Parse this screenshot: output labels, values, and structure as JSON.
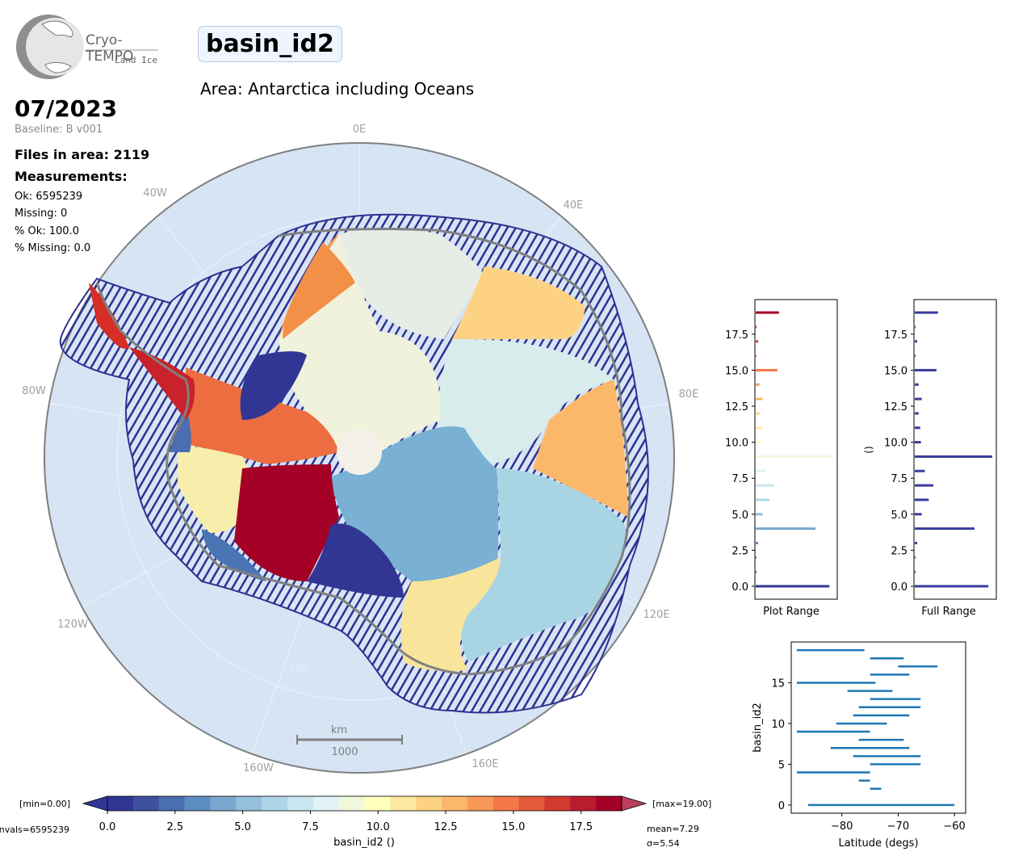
{
  "logo": {
    "name": "Cryo-TEMPO",
    "sub": "Land Ice"
  },
  "title": "basin_id2",
  "area": "Area: Antarctica including Oceans",
  "date": "07/2023",
  "baseline": "Baseline: B v001",
  "files": "Files in area: 2119",
  "measurements_label": "Measurements:",
  "stats": [
    "Ok: 6595239",
    "Missing: 0",
    "% Ok: 100.0",
    "% Missing: 0.0"
  ],
  "map": {
    "lon_labels": [
      "0E",
      "40E",
      "80E",
      "120E",
      "160E",
      "160W",
      "120W",
      "80W",
      "40W"
    ],
    "lat_label": "70S",
    "scale_unit": "km",
    "scale_value": "1000",
    "colors": {
      "ocean": "#d6e4f4",
      "track": "#2e3191",
      "coast": "#7f7f7f"
    }
  },
  "colorbar": {
    "min_label": "[min=0.00]",
    "max_label": "[max=19.00]",
    "nvals": "nvals=6595239",
    "mean": "mean=7.29",
    "sigma": "σ=5.54",
    "label": "basin_id2 ()",
    "ticks": [
      "0.0",
      "2.5",
      "5.0",
      "7.5",
      "10.0",
      "12.5",
      "15.0",
      "17.5"
    ],
    "colors": [
      "#313695",
      "#3d519f",
      "#4a6eb0",
      "#5e8ec1",
      "#79a8cf",
      "#94c0dc",
      "#aed6e8",
      "#c8e6f0",
      "#e0f2f3",
      "#f0f8db",
      "#fefebd",
      "#fee9a0",
      "#fdd283",
      "#fcb86a",
      "#f99957",
      "#f37848",
      "#e55a3a",
      "#d13a2e",
      "#b81d2d",
      "#a50026"
    ],
    "under": "#313695",
    "over": "#a50026"
  },
  "hist_plot": {
    "xlabel": "Plot Range",
    "yticks": [
      "0.0",
      "2.5",
      "5.0",
      "7.5",
      "10.0",
      "12.5",
      "15.0",
      "17.5"
    ]
  },
  "hist_full": {
    "xlabel": "Full Range",
    "ylabel": "()",
    "yticks": [
      "0.0",
      "2.5",
      "5.0",
      "7.5",
      "10.0",
      "12.5",
      "15.0",
      "17.5"
    ]
  },
  "chart_data": [
    {
      "type": "bar",
      "orientation": "horizontal",
      "xlabel": "Plot Range",
      "ylabel": "",
      "ylim": [
        -0.9,
        19.9
      ],
      "categories": [
        0,
        1,
        2,
        3,
        4,
        5,
        6,
        7,
        8,
        9,
        10,
        11,
        12,
        13,
        14,
        15,
        16,
        17,
        18,
        19
      ],
      "values": [
        0.95,
        0.0,
        0.0,
        0.03,
        0.77,
        0.09,
        0.18,
        0.24,
        0.13,
        1.0,
        0.08,
        0.07,
        0.05,
        0.09,
        0.05,
        0.28,
        0.0,
        0.02,
        0.0,
        0.3
      ]
    },
    {
      "type": "bar",
      "orientation": "horizontal",
      "xlabel": "Full Range",
      "ylabel": "()",
      "ylim": [
        -0.9,
        19.9
      ],
      "categories": [
        0,
        1,
        2,
        3,
        4,
        5,
        6,
        7,
        8,
        9,
        10,
        11,
        12,
        13,
        14,
        15,
        16,
        17,
        18,
        19
      ],
      "values": [
        0.95,
        0.0,
        0.0,
        0.03,
        0.77,
        0.09,
        0.18,
        0.24,
        0.13,
        1.0,
        0.08,
        0.07,
        0.05,
        0.09,
        0.05,
        0.28,
        0.0,
        0.02,
        0.0,
        0.3
      ]
    },
    {
      "type": "range",
      "xlabel": "Latitude (degs)",
      "ylabel": "basin_id2",
      "xlim": [
        -89,
        -58
      ],
      "ylim": [
        -1,
        20
      ],
      "xticks": [
        "−80",
        "−70",
        "−60"
      ],
      "yticks": [
        "0",
        "5",
        "10",
        "15"
      ],
      "color": "#1f77b4",
      "series": [
        {
          "y": 0,
          "lat_min": -86,
          "lat_max": -60
        },
        {
          "y": 2,
          "lat_min": -75,
          "lat_max": -73
        },
        {
          "y": 3,
          "lat_min": -77,
          "lat_max": -75
        },
        {
          "y": 4,
          "lat_min": -88,
          "lat_max": -75
        },
        {
          "y": 5,
          "lat_min": -75,
          "lat_max": -66
        },
        {
          "y": 6,
          "lat_min": -78,
          "lat_max": -66
        },
        {
          "y": 7,
          "lat_min": -82,
          "lat_max": -68
        },
        {
          "y": 8,
          "lat_min": -77,
          "lat_max": -69
        },
        {
          "y": 9,
          "lat_min": -88,
          "lat_max": -75
        },
        {
          "y": 10,
          "lat_min": -81,
          "lat_max": -72
        },
        {
          "y": 11,
          "lat_min": -78,
          "lat_max": -68
        },
        {
          "y": 12,
          "lat_min": -77,
          "lat_max": -66
        },
        {
          "y": 13,
          "lat_min": -75,
          "lat_max": -66
        },
        {
          "y": 14,
          "lat_min": -79,
          "lat_max": -71
        },
        {
          "y": 15,
          "lat_min": -88,
          "lat_max": -74
        },
        {
          "y": 16,
          "lat_min": -75,
          "lat_max": -68
        },
        {
          "y": 17,
          "lat_min": -70,
          "lat_max": -63
        },
        {
          "y": 18,
          "lat_min": -75,
          "lat_max": -69
        },
        {
          "y": 19,
          "lat_min": -88,
          "lat_max": -76
        }
      ]
    }
  ]
}
